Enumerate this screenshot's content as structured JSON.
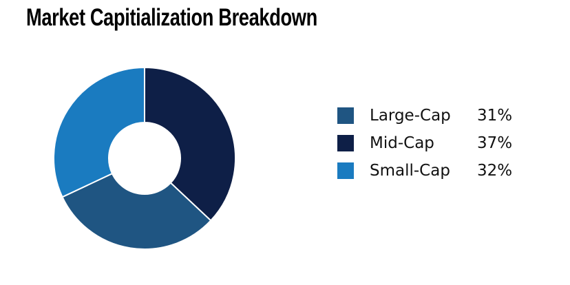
{
  "chart_data": {
    "type": "pie",
    "variant": "donut",
    "title": "Market Capitialization Breakdown",
    "slices_draw_order": [
      "Mid-Cap",
      "Large-Cap",
      "Small-Cap"
    ],
    "legend": [
      {
        "label": "Large-Cap",
        "value": 31,
        "value_label": "31%",
        "color": "#1f5582"
      },
      {
        "label": "Mid-Cap",
        "value": 37,
        "value_label": "37%",
        "color": "#0e1f47"
      },
      {
        "label": "Small-Cap",
        "value": 32,
        "value_label": "32%",
        "color": "#1a7bc0"
      }
    ],
    "legend_placement": "right"
  }
}
